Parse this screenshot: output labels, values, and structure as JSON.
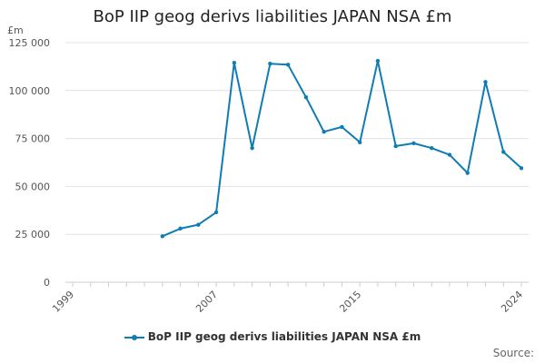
{
  "chart_data": {
    "type": "line",
    "title": "BoP IIP geog derivs liabilities JAPAN NSA £m",
    "unit_label": "£m",
    "source_label": "Source:",
    "xlim": [
      1999,
      2024
    ],
    "ylim": [
      0,
      125000
    ],
    "yticks": [
      0,
      25000,
      50000,
      75000,
      100000,
      125000
    ],
    "ytick_labels": [
      "0",
      "25 000",
      "50 000",
      "75 000",
      "100 000",
      "125 000"
    ],
    "xticks": [
      1999,
      2007,
      2015,
      2024
    ],
    "xtick_labels": [
      "1999",
      "2007",
      "2015",
      "2024"
    ],
    "grid": true,
    "legend_position": "bottom",
    "series": [
      {
        "name": "BoP IIP geog derivs liabilities JAPAN NSA £m",
        "color": "#0f7cb4",
        "x": [
          2004,
          2005,
          2006,
          2007,
          2008,
          2009,
          2010,
          2011,
          2012,
          2013,
          2014,
          2015,
          2016,
          2017,
          2018,
          2019,
          2020,
          2021,
          2022,
          2023,
          2024
        ],
        "values": [
          24000,
          28000,
          30000,
          36500,
          114500,
          70000,
          114000,
          113500,
          96500,
          78500,
          81000,
          73000,
          115500,
          71000,
          72500,
          70000,
          66500,
          57000,
          104500,
          68000,
          59500
        ]
      }
    ]
  }
}
